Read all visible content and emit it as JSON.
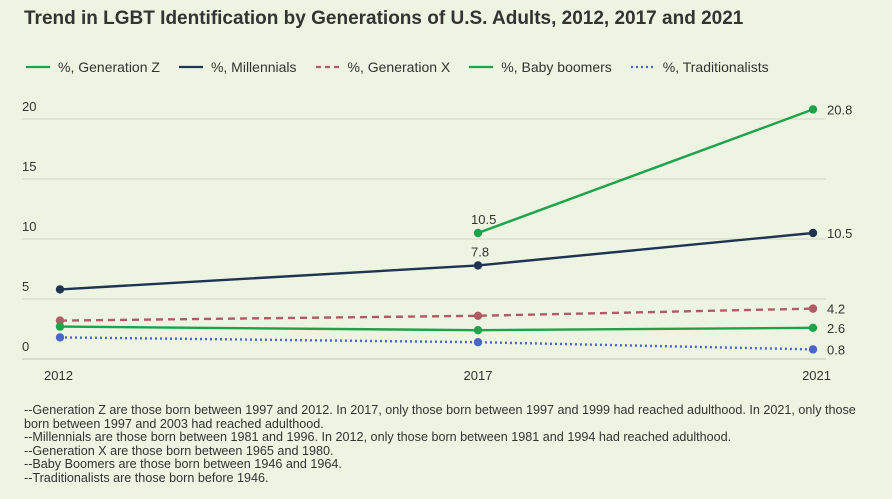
{
  "chart_data": {
    "type": "line",
    "title": "Trend in LGBT Identification by Generations of U.S. Adults, 2012, 2017 and 2021",
    "categories": [
      "2012",
      "2017",
      "2021"
    ],
    "ylim": [
      0,
      22
    ],
    "yticks": [
      0,
      5,
      10,
      15,
      20
    ],
    "xlabel": "",
    "ylabel": "",
    "grid": "horizontal",
    "series": [
      {
        "name": "%, Generation Z",
        "values": [
          null,
          10.5,
          20.8
        ],
        "color": "#1ea24c",
        "dash": "solid",
        "labels": [
          null,
          "10.5",
          "20.8"
        ]
      },
      {
        "name": "%, Millennials",
        "values": [
          5.8,
          7.8,
          10.5
        ],
        "color": "#1f3353",
        "dash": "solid",
        "labels": [
          null,
          "7.8",
          "10.5"
        ]
      },
      {
        "name": "%, Generation X",
        "values": [
          3.2,
          3.6,
          4.2
        ],
        "color": "#b05c66",
        "dash": "dashed",
        "labels": [
          null,
          null,
          "4.2"
        ]
      },
      {
        "name": "%, Baby boomers",
        "values": [
          2.7,
          2.4,
          2.6
        ],
        "color": "#1ea24c",
        "dash": "solid",
        "labels": [
          null,
          null,
          "2.6"
        ]
      },
      {
        "name": "%, Traditionalists",
        "values": [
          1.8,
          1.4,
          0.8
        ],
        "color": "#4a66c8",
        "dash": "dotted",
        "labels": [
          null,
          null,
          "0.8"
        ]
      }
    ]
  },
  "notes": [
    "--Generation Z are those born between 1997 and 2012. In 2017, only those born between 1997 and 1999 had reached adulthood. In 2021, only those born between 1997 and 2003 had reached adulthood.",
    "--Millennials are those born between 1981 and 1996. In 2012, only those born between 1981 and 1994 had reached adulthood.",
    "--Generation X are those born between 1965 and 1980.",
    "--Baby Boomers are those born between 1946 and 1964.",
    "--Traditionalists are those born before 1946."
  ]
}
